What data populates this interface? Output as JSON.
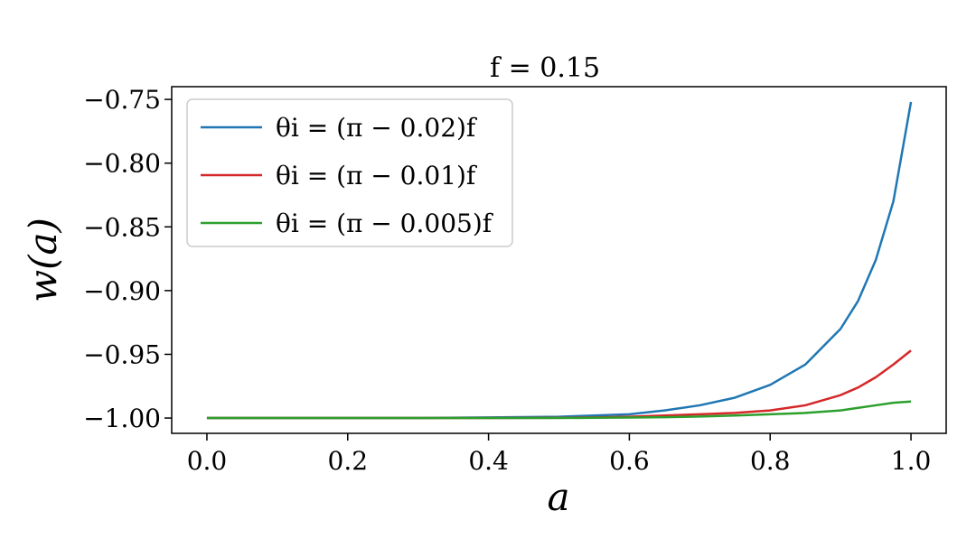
{
  "chart_data": {
    "type": "line",
    "title": "f = 0.15",
    "xlabel": "a",
    "ylabel": "w(a)",
    "xlim": [
      -0.05,
      1.05
    ],
    "ylim": [
      -1.012,
      -0.74
    ],
    "xticks": [
      0.0,
      0.2,
      0.4,
      0.6,
      0.8,
      1.0
    ],
    "xtick_labels": [
      "0.0",
      "0.2",
      "0.4",
      "0.6",
      "0.8",
      "1.0"
    ],
    "yticks": [
      -0.75,
      -0.8,
      -0.85,
      -0.9,
      -0.95,
      -1.0
    ],
    "ytick_labels": [
      "−0.75",
      "−0.80",
      "−0.85",
      "−0.90",
      "−0.95",
      "−1.00"
    ],
    "grid": false,
    "legend_position": "top-left",
    "x": [
      0.0,
      0.1,
      0.2,
      0.3,
      0.4,
      0.5,
      0.55,
      0.6,
      0.65,
      0.7,
      0.75,
      0.8,
      0.85,
      0.9,
      0.925,
      0.95,
      0.975,
      1.0
    ],
    "series": [
      {
        "name": "θi = (π − 0.02)f",
        "color": "#1f77b4",
        "values": [
          -1.0,
          -1.0,
          -1.0,
          -1.0,
          -0.9995,
          -0.999,
          -0.998,
          -0.997,
          -0.994,
          -0.99,
          -0.984,
          -0.974,
          -0.958,
          -0.93,
          -0.908,
          -0.876,
          -0.83,
          -0.752
        ]
      },
      {
        "name": "θi = (π − 0.01)f",
        "color": "#d62728",
        "values": [
          -1.0,
          -1.0,
          -1.0,
          -1.0,
          -1.0,
          -0.9998,
          -0.9995,
          -0.999,
          -0.998,
          -0.997,
          -0.996,
          -0.994,
          -0.99,
          -0.982,
          -0.976,
          -0.968,
          -0.958,
          -0.947
        ]
      },
      {
        "name": "θi = (π − 0.005)f",
        "color": "#2ca02c",
        "values": [
          -1.0,
          -1.0,
          -1.0,
          -1.0,
          -1.0,
          -1.0,
          -0.9998,
          -0.9996,
          -0.9993,
          -0.9988,
          -0.998,
          -0.997,
          -0.996,
          -0.994,
          -0.992,
          -0.99,
          -0.988,
          -0.987
        ]
      }
    ]
  }
}
